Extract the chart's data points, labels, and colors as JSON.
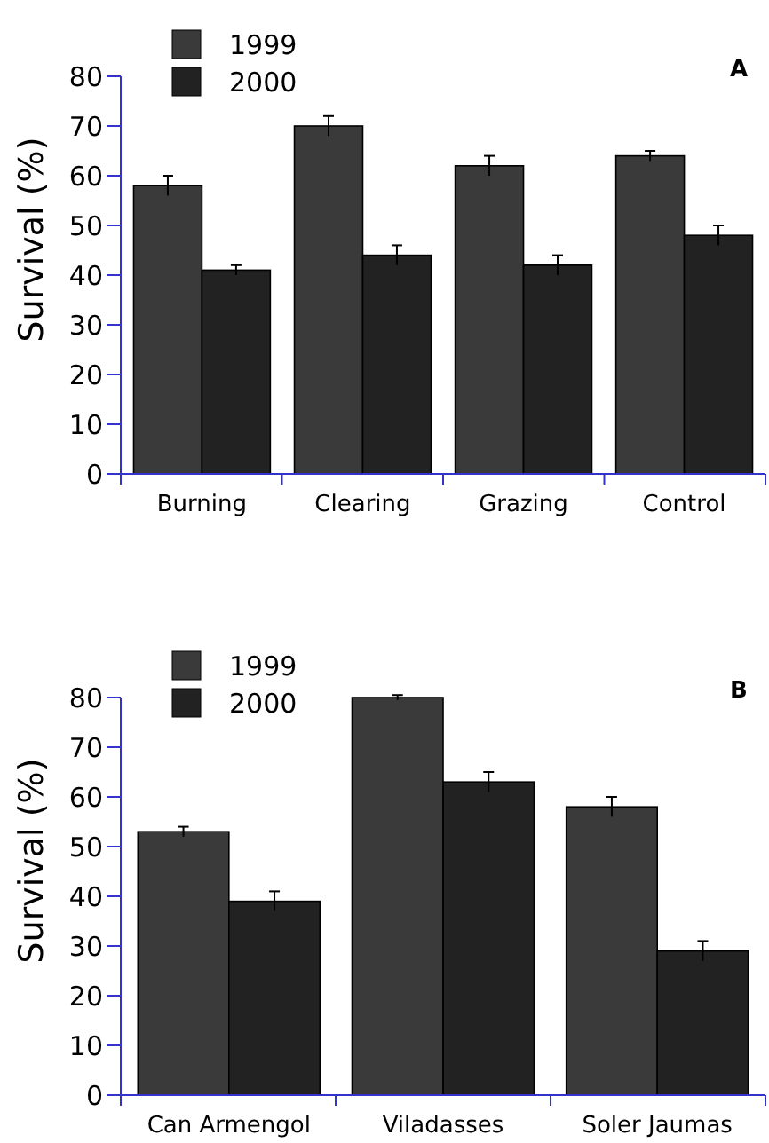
{
  "chart_data": [
    {
      "type": "bar",
      "title": "A",
      "ylabel": "Survival  (%)",
      "categories": [
        "Burning",
        "Clearing",
        "Grazing",
        "Control"
      ],
      "series": [
        {
          "name": "1999",
          "color": "#3a3a3a",
          "values": [
            58,
            70,
            62,
            64
          ],
          "errors": [
            2,
            2,
            2,
            1
          ]
        },
        {
          "name": "2000",
          "color": "#222222",
          "values": [
            41,
            44,
            42,
            48
          ],
          "errors": [
            1,
            2,
            2,
            2
          ]
        }
      ],
      "ylim": [
        0,
        80
      ],
      "yticks": [
        0,
        10,
        20,
        30,
        40,
        50,
        60,
        70,
        80
      ],
      "legend": "top left",
      "grid": false
    },
    {
      "type": "bar",
      "title": "B",
      "ylabel": "Survival  (%)",
      "categories": [
        "Can Armengol",
        "Viladasses",
        "Soler Jaumas"
      ],
      "series": [
        {
          "name": "1999",
          "color": "#3a3a3a",
          "values": [
            53,
            80,
            58
          ],
          "errors": [
            1,
            0.5,
            2
          ]
        },
        {
          "name": "2000",
          "color": "#222222",
          "values": [
            39,
            63,
            29
          ],
          "errors": [
            2,
            2,
            2
          ]
        }
      ],
      "ylim": [
        0,
        80
      ],
      "yticks": [
        0,
        10,
        20,
        30,
        40,
        50,
        60,
        70,
        80
      ],
      "legend": "top left",
      "grid": false
    }
  ]
}
